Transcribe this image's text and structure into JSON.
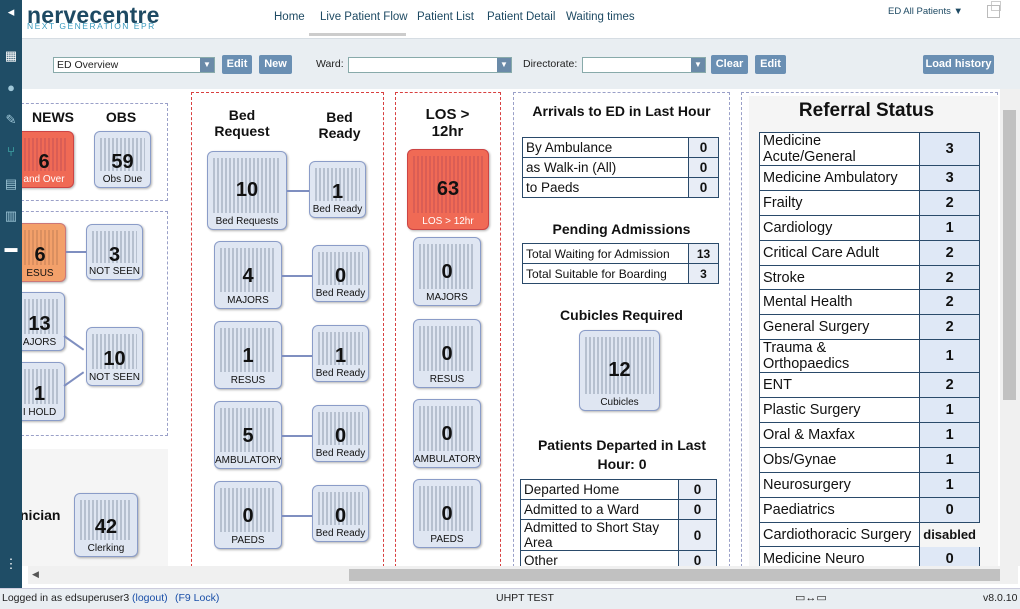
{
  "brand": {
    "name": "nervecentre",
    "tagline": "NEXT GENERATION EPR"
  },
  "nav": {
    "home": "Home",
    "live": "Live Patient Flow",
    "list": "Patient List",
    "detail": "Patient Detail",
    "waiting": "Waiting times"
  },
  "context": "ED All Patients ▼",
  "toolbar": {
    "view_value": "ED Overview",
    "edit": "Edit",
    "new": "New",
    "ward_label": "Ward:",
    "ward_value": "",
    "directorate_label": "Directorate:",
    "directorate_value": "",
    "clear": "Clear",
    "edit2": "Edit",
    "load_history": "Load history"
  },
  "left": {
    "news_h": "NEWS",
    "obs_h": "OBS",
    "news_num": "6",
    "news_cap": "and Over",
    "obs_num": "59",
    "obs_cap": "Obs Due",
    "resus_num": "6",
    "resus_cap": "ESUS",
    "resus_ns_num": "3",
    "resus_ns_cap": "NOT SEEN",
    "majors_num": "13",
    "majors_cap": "AJORS",
    "majors_ns_num": "10",
    "majors_ns_cap": "NOT SEEN",
    "hold_num": "1",
    "hold_cap": "I HOLD",
    "clinician_label": "nician",
    "clerk_num": "42",
    "clerk_cap": "Clerking"
  },
  "beds": {
    "h_request": "Bed Request",
    "h_ready": "Bed Ready",
    "rows": [
      {
        "req": "10",
        "req_cap": "Bed Requests",
        "rdy": "1",
        "rdy_cap": "Bed Ready"
      },
      {
        "req": "4",
        "req_cap": "MAJORS",
        "rdy": "0",
        "rdy_cap": "Bed Ready"
      },
      {
        "req": "1",
        "req_cap": "RESUS",
        "rdy": "1",
        "rdy_cap": "Bed Ready"
      },
      {
        "req": "5",
        "req_cap": "AMBULATORY",
        "rdy": "0",
        "rdy_cap": "Bed Ready"
      },
      {
        "req": "0",
        "req_cap": "PAEDS",
        "rdy": "0",
        "rdy_cap": "Bed Ready"
      }
    ]
  },
  "los": {
    "h": "LOS > 12hr",
    "tiles": [
      {
        "num": "63",
        "cap": "LOS > 12hr"
      },
      {
        "num": "0",
        "cap": "MAJORS"
      },
      {
        "num": "0",
        "cap": "RESUS"
      },
      {
        "num": "0",
        "cap": "AMBULATORY"
      },
      {
        "num": "0",
        "cap": "PAEDS"
      }
    ]
  },
  "arrivals": {
    "h": "Arrivals to ED in Last Hour",
    "rows": [
      [
        "By Ambulance",
        "0"
      ],
      [
        "as Walk-in (All)",
        "0"
      ],
      [
        "to Paeds",
        "0"
      ]
    ],
    "pending_h": "Pending Admissions",
    "pending": [
      [
        "Total Waiting for Admission",
        "13"
      ],
      [
        "Total Suitable for Boarding",
        "3"
      ]
    ],
    "cubicles_h": "Cubicles Required",
    "cubicles_num": "12",
    "cubicles_cap": "Cubicles",
    "departed_h": "Patients Departed in Last Hour: 0",
    "departed": [
      [
        "Departed Home",
        "0"
      ],
      [
        "Admitted to a Ward",
        "0"
      ],
      [
        "Admitted to Short Stay Area",
        "0"
      ],
      [
        "Other",
        "0"
      ]
    ]
  },
  "referral": {
    "h": "Referral Status",
    "rows": [
      [
        "Medicine Acute/General",
        "3"
      ],
      [
        "Medicine Ambulatory",
        "3"
      ],
      [
        "Frailty",
        "2"
      ],
      [
        "Cardiology",
        "1"
      ],
      [
        "Critical Care Adult",
        "2"
      ],
      [
        "Stroke",
        "2"
      ],
      [
        "Mental Health",
        "2"
      ],
      [
        "General Surgery",
        "2"
      ],
      [
        "Trauma & Orthopaedics",
        "1"
      ],
      [
        "ENT",
        "2"
      ],
      [
        "Plastic Surgery",
        "1"
      ],
      [
        "Oral & Maxfax",
        "1"
      ],
      [
        "Obs/Gynae",
        "1"
      ],
      [
        "Neurosurgery",
        "1"
      ],
      [
        "Paediatrics",
        "0"
      ],
      [
        "Cardiothoracic Surgery",
        "disabled"
      ],
      [
        "Medicine Neuro",
        "0"
      ]
    ]
  },
  "statusbar": {
    "login": "Logged in as edsuperuser3",
    "logout": "(logout)",
    "lock": "(F9 Lock)",
    "site": "UHPT TEST",
    "version": "v8.0.10"
  }
}
